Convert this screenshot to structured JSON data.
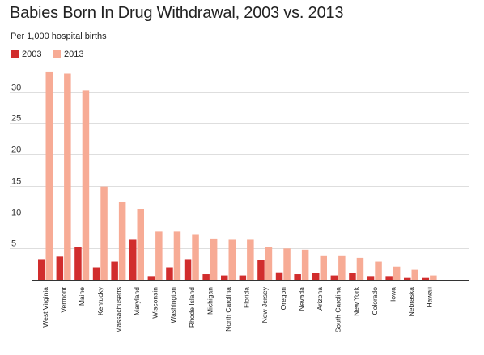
{
  "chart_data": {
    "type": "bar",
    "title": "Babies Born In Drug Withdrawal, 2003 vs. 2013",
    "subtitle": "Per 1,000 hospital births",
    "categories": [
      "West Virginia",
      "Vermont",
      "Maine",
      "Kentucky",
      "Massachusetts",
      "Maryland",
      "Wisconsin",
      "Washington",
      "Rhode Island",
      "Michigan",
      "North Carolina",
      "Florida",
      "New Jersey",
      "Oregon",
      "Nevada",
      "Arizona",
      "South Carolina",
      "New York",
      "Colorado",
      "Iowa",
      "Nebraska",
      "Hawaii"
    ],
    "series": [
      {
        "name": "2003",
        "color": "#d12d2d",
        "values": [
          3.3,
          3.7,
          5.2,
          2.0,
          2.9,
          6.4,
          0.6,
          2.0,
          3.3,
          0.9,
          0.7,
          0.7,
          3.2,
          1.2,
          0.9,
          1.1,
          0.7,
          1.1,
          0.6,
          0.6,
          0.3,
          0.3
        ]
      },
      {
        "name": "2013",
        "color": "#f7ab95",
        "values": [
          33.2,
          33.0,
          30.3,
          14.9,
          12.4,
          11.3,
          7.7,
          7.7,
          7.3,
          6.6,
          6.4,
          6.4,
          5.2,
          5.0,
          4.8,
          3.9,
          3.9,
          3.5,
          2.9,
          2.1,
          1.6,
          0.7
        ]
      }
    ],
    "ylim": [
      0,
      35
    ],
    "yticks": [
      5,
      10,
      15,
      20,
      25,
      30
    ],
    "xlabel": "",
    "ylabel": "",
    "grid": true,
    "legend_position": "top-left"
  }
}
